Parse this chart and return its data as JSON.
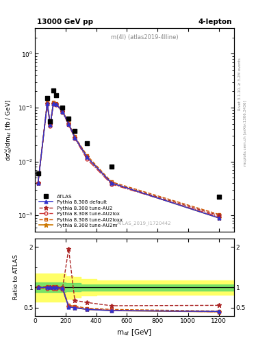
{
  "title_left": "13000 GeV pp",
  "title_right": "4-lepton",
  "inner_title": "m(4l) (atlas2019-4lline)",
  "watermark": "ATLAS_2019_I1720442",
  "right_label1": "Rivet 3.1.10, ≥ 3.2M events",
  "right_label2": "mcplots.cern.ch [arXiv:1306.3436]",
  "atlas_x": [
    20,
    80,
    100,
    120,
    140,
    180,
    220,
    260,
    340,
    500,
    1200
  ],
  "atlas_y": [
    0.006,
    0.15,
    0.055,
    0.21,
    0.17,
    0.1,
    0.063,
    0.037,
    0.022,
    0.008,
    0.0022
  ],
  "mc_x": [
    20,
    80,
    100,
    120,
    140,
    180,
    220,
    260,
    340,
    500,
    1200
  ],
  "default_y": [
    0.004,
    0.12,
    0.048,
    0.12,
    0.115,
    0.085,
    0.05,
    0.028,
    0.012,
    0.004,
    0.0009
  ],
  "au2_y": [
    0.004,
    0.12,
    0.048,
    0.12,
    0.115,
    0.085,
    0.05,
    0.028,
    0.012,
    0.004,
    0.001
  ],
  "au2lox_y": [
    0.004,
    0.115,
    0.046,
    0.115,
    0.112,
    0.082,
    0.048,
    0.027,
    0.011,
    0.0038,
    0.00095
  ],
  "au2loxx_y": [
    0.004,
    0.125,
    0.05,
    0.125,
    0.118,
    0.088,
    0.052,
    0.029,
    0.013,
    0.0042,
    0.00105
  ],
  "au2m_y": [
    0.004,
    0.12,
    0.048,
    0.12,
    0.115,
    0.085,
    0.05,
    0.028,
    0.012,
    0.004,
    0.0009
  ],
  "band_x": [
    0,
    100,
    150,
    200,
    250,
    300,
    400,
    500,
    600,
    700,
    800,
    900,
    1000,
    1100,
    1200,
    1300
  ],
  "green_lo": [
    0.9,
    0.88,
    0.88,
    0.88,
    0.9,
    0.9,
    0.92,
    0.92,
    0.92,
    0.92,
    0.92,
    0.92,
    0.92,
    0.92,
    0.92,
    0.92
  ],
  "green_hi": [
    1.1,
    1.12,
    1.12,
    1.12,
    1.1,
    1.1,
    1.08,
    1.08,
    1.08,
    1.08,
    1.08,
    1.08,
    1.08,
    1.08,
    1.08,
    1.08
  ],
  "yellow_lo": [
    0.75,
    0.65,
    0.65,
    0.65,
    0.72,
    0.75,
    0.8,
    0.82,
    0.82,
    0.82,
    0.82,
    0.82,
    0.82,
    0.82,
    0.82,
    0.82
  ],
  "yellow_hi": [
    1.25,
    1.35,
    1.35,
    1.35,
    1.28,
    1.25,
    1.2,
    1.18,
    1.18,
    1.18,
    1.18,
    1.18,
    1.18,
    1.18,
    1.18,
    1.18
  ],
  "ratio_default_y": [
    1.0,
    1.0,
    1.0,
    1.0,
    1.0,
    0.98,
    0.52,
    0.5,
    0.46,
    0.43,
    0.41
  ],
  "ratio_au2_y": [
    1.0,
    1.0,
    1.0,
    1.0,
    1.0,
    0.98,
    1.95,
    0.68,
    0.63,
    0.55,
    0.56
  ],
  "ratio_au2lox_y": [
    1.0,
    0.97,
    1.0,
    0.97,
    0.97,
    0.95,
    0.53,
    0.51,
    0.47,
    0.44,
    0.4
  ],
  "ratio_au2loxx_y": [
    1.0,
    1.03,
    1.0,
    1.03,
    1.02,
    1.0,
    0.56,
    0.54,
    0.49,
    0.46,
    0.42
  ],
  "ratio_au2m_y": [
    1.0,
    1.0,
    1.0,
    1.0,
    1.0,
    0.98,
    0.53,
    0.5,
    0.46,
    0.43,
    0.4
  ],
  "colors": {
    "default": "#3333cc",
    "au2": "#aa2222",
    "au2lox": "#cc3333",
    "au2loxx": "#cc5500",
    "au2m": "#cc7700"
  },
  "xlim": [
    0,
    1300
  ],
  "ylim_main": [
    0.0005,
    3.0
  ],
  "ylim_ratio": [
    0.3,
    2.2
  ]
}
